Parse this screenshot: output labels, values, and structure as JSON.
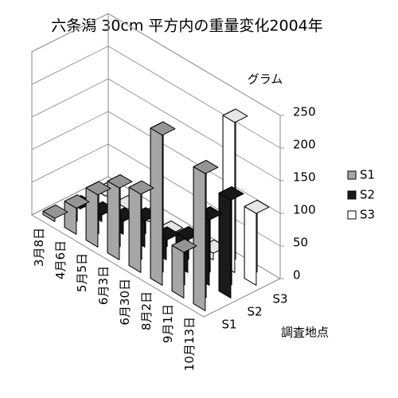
{
  "chart_data": {
    "type": "bar3d",
    "title": "六条潟 30cm 平方内の重量変化2004年",
    "y_label": "グラム",
    "z_label": "調査地点",
    "categories": [
      "3月8日",
      "4月6日",
      "5月5日",
      "6月3日",
      "6月30日",
      "8月2日",
      "9月1日",
      "10月13日"
    ],
    "series": [
      {
        "name": "S1",
        "color": "#a6a6a6",
        "values": [
          5,
          40,
          80,
          110,
          120,
          230,
          70,
          210
        ]
      },
      {
        "name": "S2",
        "color": "#1a1a1a",
        "values": [
          0,
          10,
          20,
          40,
          30,
          50,
          100,
          150
        ]
      },
      {
        "name": "S3",
        "color": "#ffffff",
        "values": [
          0,
          0,
          0,
          0,
          0,
          10,
          230,
          110
        ]
      }
    ],
    "ylim": [
      0,
      250
    ],
    "yticks": [
      0,
      50,
      100,
      150,
      200,
      250
    ],
    "grid": true
  }
}
